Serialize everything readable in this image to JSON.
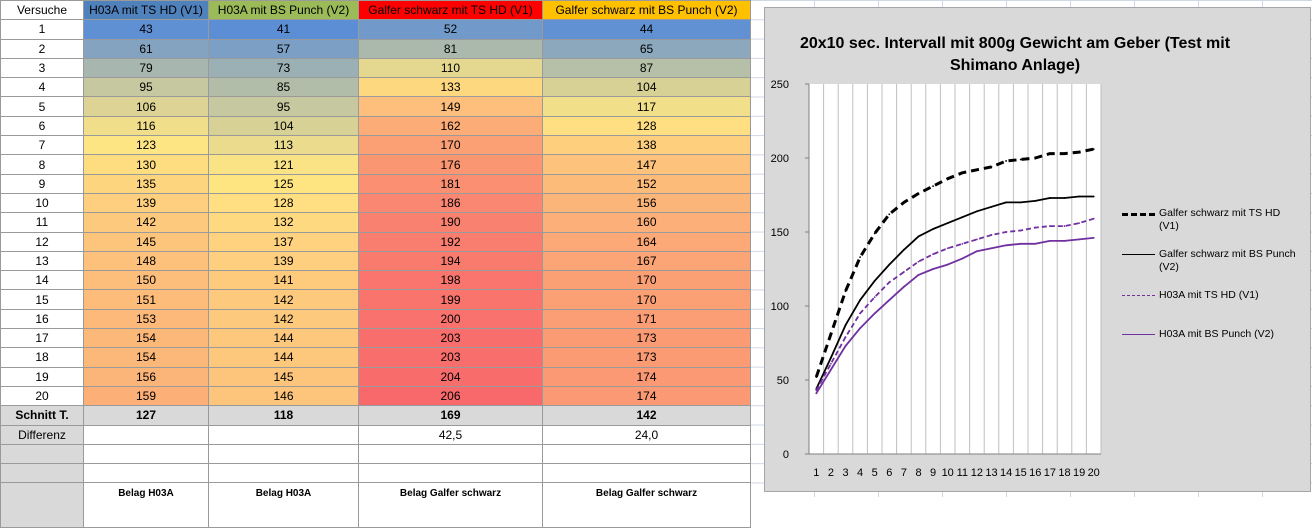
{
  "table": {
    "headers": [
      "Versuche",
      "H03A mit TS HD (V1)",
      "H03A mit BS Punch (V2)",
      "Galfer schwarz mit TS HD (V1)",
      "Galfer schwarz mit BS Punch (V2)"
    ],
    "header_colors": [
      "#ffffff",
      "#4f81bd",
      "#9bbb59",
      "#ff0000",
      "#ffc000"
    ],
    "rows": [
      [
        "1",
        "43",
        "41",
        "52",
        "44"
      ],
      [
        "2",
        "61",
        "57",
        "81",
        "65"
      ],
      [
        "3",
        "79",
        "73",
        "110",
        "87"
      ],
      [
        "4",
        "95",
        "85",
        "133",
        "104"
      ],
      [
        "5",
        "106",
        "95",
        "149",
        "117"
      ],
      [
        "6",
        "116",
        "104",
        "162",
        "128"
      ],
      [
        "7",
        "123",
        "113",
        "170",
        "138"
      ],
      [
        "8",
        "130",
        "121",
        "176",
        "147"
      ],
      [
        "9",
        "135",
        "125",
        "181",
        "152"
      ],
      [
        "10",
        "139",
        "128",
        "186",
        "156"
      ],
      [
        "11",
        "142",
        "132",
        "190",
        "160"
      ],
      [
        "12",
        "145",
        "137",
        "192",
        "164"
      ],
      [
        "13",
        "148",
        "139",
        "194",
        "167"
      ],
      [
        "14",
        "150",
        "141",
        "198",
        "170"
      ],
      [
        "15",
        "151",
        "142",
        "199",
        "170"
      ],
      [
        "16",
        "153",
        "142",
        "200",
        "171"
      ],
      [
        "17",
        "154",
        "144",
        "203",
        "173"
      ],
      [
        "18",
        "154",
        "144",
        "203",
        "173"
      ],
      [
        "19",
        "156",
        "145",
        "204",
        "174"
      ],
      [
        "20",
        "159",
        "146",
        "206",
        "174"
      ]
    ],
    "summary": [
      "Schnitt T.",
      "127",
      "118",
      "169",
      "142"
    ],
    "difference": [
      "Differenz",
      "",
      "",
      "42,5",
      "24,0"
    ],
    "labels": [
      "",
      "Belag H03A",
      "Belag H03A",
      "Belag Galfer schwarz",
      "Belag Galfer schwarz"
    ]
  },
  "chart_data": {
    "type": "line",
    "title": "20x10 sec. Intervall mit 800g Gewicht am Geber (Test mit Shimano Anlage)",
    "x": [
      1,
      2,
      3,
      4,
      5,
      6,
      7,
      8,
      9,
      10,
      11,
      12,
      13,
      14,
      15,
      16,
      17,
      18,
      19,
      20
    ],
    "ylim": [
      0,
      250
    ],
    "yticks": [
      0,
      50,
      100,
      150,
      200,
      250
    ],
    "grid": "vertical",
    "legend_position": "right",
    "series": [
      {
        "name": "Galfer schwarz mit TS HD (V1)",
        "color": "#000000",
        "style": "dashed-bold",
        "values": [
          52,
          81,
          110,
          133,
          149,
          162,
          170,
          176,
          181,
          186,
          190,
          192,
          194,
          198,
          199,
          200,
          203,
          203,
          204,
          206
        ]
      },
      {
        "name": "Galfer schwarz mit BS Punch (V2)",
        "color": "#000000",
        "style": "solid",
        "values": [
          44,
          65,
          87,
          104,
          117,
          128,
          138,
          147,
          152,
          156,
          160,
          164,
          167,
          170,
          170,
          171,
          173,
          173,
          174,
          174
        ]
      },
      {
        "name": "H03A mit TS HD (V1)",
        "color": "#7030a0",
        "style": "dashed",
        "values": [
          43,
          61,
          79,
          95,
          106,
          116,
          123,
          130,
          135,
          139,
          142,
          145,
          148,
          150,
          151,
          153,
          154,
          154,
          156,
          159
        ]
      },
      {
        "name": "H03A mit BS Punch (V2)",
        "color": "#7030a0",
        "style": "solid",
        "values": [
          41,
          57,
          73,
          85,
          95,
          104,
          113,
          121,
          125,
          128,
          132,
          137,
          139,
          141,
          142,
          142,
          144,
          144,
          145,
          146
        ]
      }
    ]
  }
}
